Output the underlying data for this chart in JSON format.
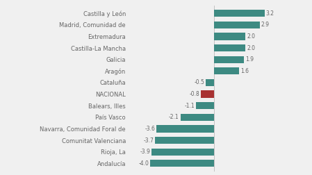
{
  "categories": [
    "Castilla y León",
    "Madrid, Comunidad de",
    "Extremadura",
    "Castilla-La Mancha",
    "Galicia",
    "Aragón",
    "Cataluña",
    "NACIONAL",
    "Balears, Illes",
    "País Vasco",
    "Navarra, Comunidad Foral de",
    "Comunitat Valenciana",
    "Rioja, La",
    "Andalucía"
  ],
  "values": [
    3.2,
    2.9,
    2.0,
    2.0,
    1.9,
    1.6,
    -0.5,
    -0.8,
    -1.1,
    -2.1,
    -3.6,
    -3.7,
    -3.9,
    -4.0
  ],
  "bar_color_default": "#3d8a82",
  "bar_color_nacional": "#a83232",
  "nacional_label": "NACIONAL",
  "background_color": "#f0f0f0",
  "text_color": "#666666",
  "value_fontsize": 5.5,
  "label_fontsize": 6.0,
  "xlim_min": -5.2,
  "xlim_max": 4.8,
  "bar_height": 0.62
}
